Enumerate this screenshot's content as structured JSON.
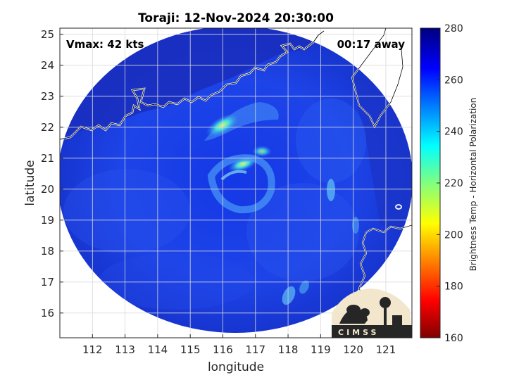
{
  "title": "Toraji: 12-Nov-2024 20:30:00",
  "vmax_text": "Vmax: 42 kts",
  "away_text": "00:17 away",
  "x_axis": {
    "label": "longitude",
    "ticks": [
      112,
      113,
      114,
      115,
      116,
      117,
      118,
      119,
      120,
      121
    ],
    "range": [
      111.0,
      121.8
    ]
  },
  "y_axis": {
    "label": "latitude",
    "ticks": [
      16,
      17,
      18,
      19,
      20,
      21,
      22,
      23,
      24,
      25
    ],
    "range": [
      15.2,
      25.2
    ]
  },
  "colorbar": {
    "label": "Brightness Temp - Horizontal Polarization",
    "ticks": [
      160,
      180,
      200,
      220,
      240,
      260,
      280
    ],
    "range": [
      160,
      280
    ],
    "colormap": "jet"
  },
  "logo": {
    "text": "CIMSS"
  },
  "storm_center": {
    "lon": 116.6,
    "lat": 20.3
  },
  "colors": {
    "background_field": "#1f3fe0",
    "coastline": "#ffffff",
    "land": "#ffffff"
  }
}
